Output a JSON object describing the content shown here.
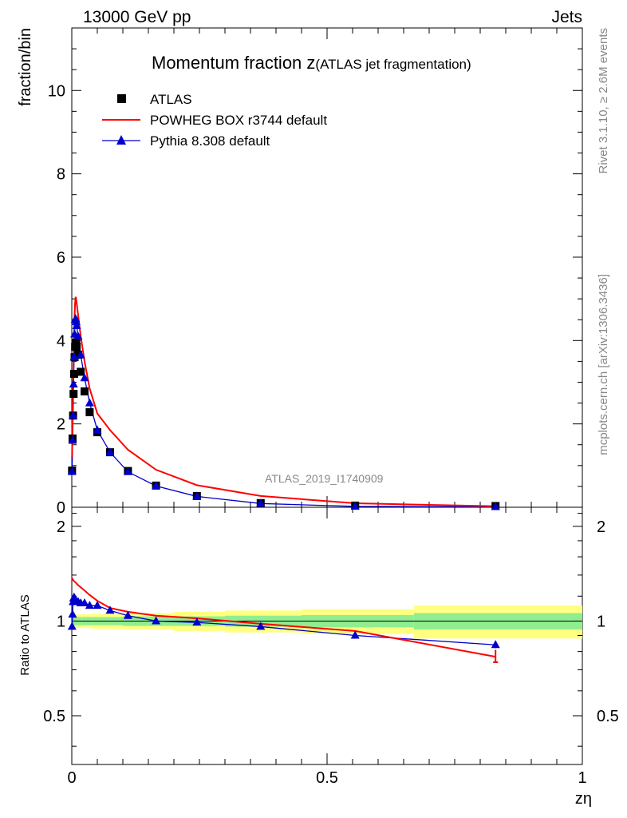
{
  "header": {
    "left": "13000 GeV pp",
    "right": "Jets"
  },
  "title": {
    "main": "Momentum fraction z",
    "sub": "(ATLAS jet fragmentation)"
  },
  "side_labels": {
    "rivet": "Rivet 3.1.10, ≥ 2.6M events",
    "mcplots": "mcplots.cern.ch [arXiv:1306.3436]"
  },
  "watermark": "ATLAS_2019_I1740909",
  "colors": {
    "data": "#000000",
    "powheg": "#ff0000",
    "pythia": "#0000cc",
    "band_inner": "#90ee90",
    "band_outer": "#ffff80"
  },
  "chart_data": [
    {
      "type": "line",
      "panel": "main",
      "ylabel": "fraction/bin",
      "xlim": [
        0,
        1
      ],
      "ylim": [
        0,
        11.5
      ],
      "yticks": [
        "0",
        "2",
        "4",
        "6",
        "8",
        "10"
      ],
      "legend_position": "top-left",
      "legend": [
        "ATLAS",
        "POWHEG BOX r3744 default",
        "Pythia 8.308 default"
      ],
      "x": [
        0.0005,
        0.0015,
        0.0025,
        0.0035,
        0.0045,
        0.0055,
        0.0065,
        0.0075,
        0.0085,
        0.0095,
        0.0125,
        0.0175,
        0.025,
        0.035,
        0.05,
        0.075,
        0.11,
        0.165,
        0.245,
        0.37,
        0.555,
        0.83
      ],
      "series": [
        {
          "name": "ATLAS",
          "style": "markers-square",
          "values": [
            0.88,
            1.65,
            2.2,
            2.72,
            3.2,
            3.6,
            3.85,
            3.93,
            3.95,
            3.85,
            3.66,
            3.25,
            2.78,
            2.28,
            1.8,
            1.32,
            0.87,
            0.52,
            0.27,
            0.1,
            0.04,
            0.03
          ]
        },
        {
          "name": "POWHEG BOX r3744 default",
          "style": "line",
          "values": [
            1.2,
            2.2,
            2.9,
            3.5,
            4.1,
            4.6,
            4.9,
            5.05,
            5.0,
            4.9,
            4.6,
            4.1,
            3.5,
            2.85,
            2.25,
            1.85,
            1.38,
            0.9,
            0.53,
            0.27,
            0.095,
            0.025
          ]
        },
        {
          "name": "Pythia 8.308 default",
          "style": "line-triangles",
          "values": [
            0.85,
            1.6,
            2.2,
            2.95,
            3.6,
            4.15,
            4.5,
            4.52,
            4.45,
            4.35,
            4.1,
            3.65,
            3.1,
            2.5,
            1.85,
            1.32,
            0.85,
            0.51,
            0.26,
            0.09,
            0.02,
            0.01
          ]
        }
      ]
    },
    {
      "type": "line",
      "panel": "ratio",
      "ylabel": "Ratio to ATLAS",
      "xlabel": "zη",
      "xlim": [
        0,
        1
      ],
      "ylim": [
        0.35,
        2.3
      ],
      "xticks": [
        "0",
        "0.5",
        "1"
      ],
      "yticks": [
        "0.5",
        "1",
        "2"
      ],
      "x": [
        0.0005,
        0.0015,
        0.0025,
        0.0035,
        0.0045,
        0.0055,
        0.0065,
        0.0075,
        0.0085,
        0.0095,
        0.0125,
        0.0175,
        0.025,
        0.035,
        0.05,
        0.075,
        0.11,
        0.165,
        0.245,
        0.37,
        0.555,
        0.83
      ],
      "series": [
        {
          "name": "POWHEG BOX r3744 default",
          "values": [
            1.37,
            1.36,
            1.35,
            1.345,
            1.34,
            1.335,
            1.33,
            1.325,
            1.32,
            1.315,
            1.3,
            1.28,
            1.25,
            1.21,
            1.16,
            1.1,
            1.07,
            1.04,
            1.02,
            0.98,
            0.93,
            0.77
          ]
        },
        {
          "name": "Pythia 8.308 default",
          "values": [
            0.96,
            1.05,
            1.15,
            1.18,
            1.19,
            1.17,
            1.16,
            1.16,
            1.16,
            1.15,
            1.15,
            1.14,
            1.14,
            1.12,
            1.12,
            1.08,
            1.04,
            1.0,
            0.99,
            0.96,
            0.9,
            0.84
          ]
        }
      ],
      "reference_line": 1,
      "uncertainty_bands": {
        "x_edges": [
          0,
          0.02,
          0.04,
          0.1,
          0.2,
          0.3,
          0.45,
          0.67,
          1.0
        ],
        "inner": [
          0.03,
          0.03,
          0.03,
          0.035,
          0.035,
          0.04,
          0.045,
          0.06
        ],
        "outer": [
          0.05,
          0.05,
          0.055,
          0.06,
          0.07,
          0.08,
          0.09,
          0.12
        ]
      }
    }
  ]
}
